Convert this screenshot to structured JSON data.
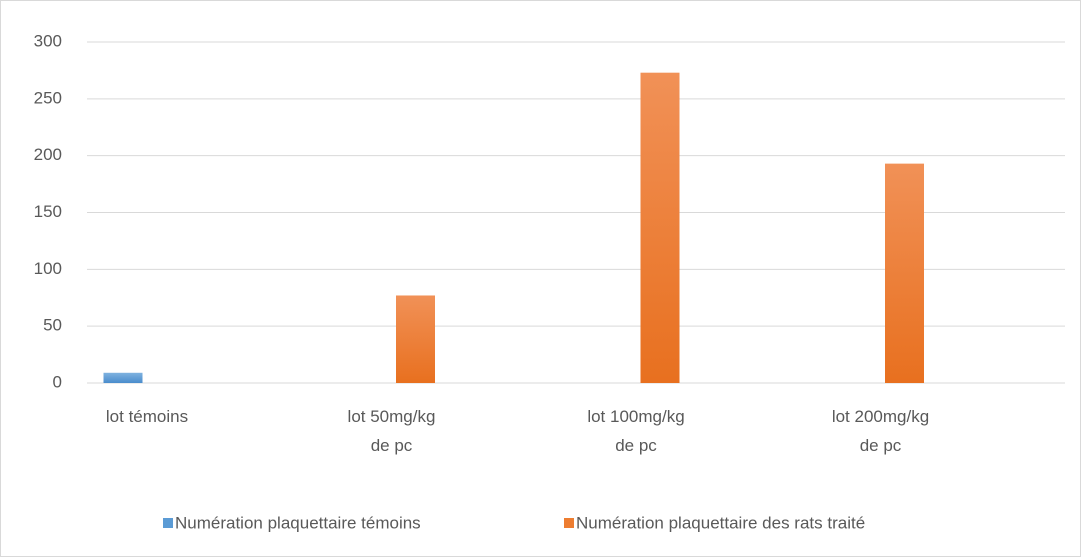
{
  "chart_data": {
    "type": "bar",
    "categories": [
      "lot témoins",
      "lot 50mg/kg de pc",
      "lot 100mg/kg de pc",
      "lot 200mg/kg de pc"
    ],
    "series": [
      {
        "name": "Numération plaquettaire témoins",
        "color": "#5b9bd5",
        "values": [
          9,
          null,
          null,
          null
        ]
      },
      {
        "name": "Numération plaquettaire des rats traité",
        "color": "#ed7d31",
        "values": [
          null,
          77,
          273,
          193
        ]
      }
    ],
    "ylim": [
      0,
      300
    ],
    "yticks": [
      0,
      50,
      100,
      150,
      200,
      250,
      300
    ],
    "grid": true,
    "legend": "bottom"
  }
}
